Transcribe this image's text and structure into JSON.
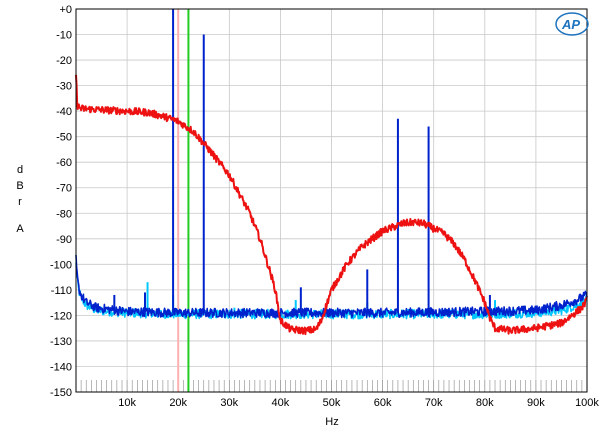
{
  "chart_data": {
    "type": "line",
    "title": "",
    "xlabel": "Hz",
    "ylabel": "dBr A",
    "ylabel_letters": [
      "d",
      "B",
      "r",
      "",
      "A"
    ],
    "xlim": [
      0,
      100000
    ],
    "ylim": [
      -150,
      0
    ],
    "x_ticks": [
      10000,
      20000,
      30000,
      40000,
      50000,
      60000,
      70000,
      80000,
      90000,
      100000
    ],
    "x_tick_labels": [
      "10k",
      "20k",
      "30k",
      "40k",
      "50k",
      "60k",
      "70k",
      "80k",
      "90k",
      "100k"
    ],
    "y_ticks": [
      0,
      -10,
      -20,
      -30,
      -40,
      -50,
      -60,
      -70,
      -80,
      -90,
      -100,
      -110,
      -120,
      -130,
      -140,
      -150
    ],
    "y_tick_labels": [
      "+0",
      "-10",
      "-20",
      "-30",
      "-40",
      "-50",
      "-60",
      "-70",
      "-80",
      "-90",
      "-100",
      "-110",
      "-120",
      "-130",
      "-140",
      "-150"
    ],
    "grid": true,
    "logo": "AP",
    "series": [
      {
        "color": "#00c8ff",
        "kind": "noise-floor",
        "x": [
          0,
          200,
          500,
          1000,
          2000,
          4000,
          10000,
          20000,
          40000,
          60000,
          80000,
          90000,
          95000,
          98000,
          100000
        ],
        "y": [
          -100,
          -105,
          -110,
          -113,
          -116,
          -118,
          -119,
          -119.5,
          -119.5,
          -119.5,
          -119.5,
          -119,
          -118,
          -116,
          -114
        ],
        "spikes": [
          {
            "x": 14000,
            "y": -107
          },
          {
            "x": 19000,
            "y": -112
          },
          {
            "x": 31000,
            "y": -117
          },
          {
            "x": 43000,
            "y": -114
          },
          {
            "x": 57000,
            "y": -115
          },
          {
            "x": 82000,
            "y": -114
          }
        ]
      },
      {
        "color": "#0022cc",
        "kind": "noise-floor",
        "x": [
          0,
          200,
          500,
          1000,
          2000,
          4000,
          10000,
          20000,
          40000,
          60000,
          80000,
          90000,
          95000,
          98000,
          100000
        ],
        "y": [
          -98,
          -104,
          -109,
          -112,
          -115,
          -117,
          -118.5,
          -119,
          -119,
          -119,
          -118.5,
          -118,
          -116,
          -114,
          -112
        ],
        "spikes": [
          {
            "x": 7500,
            "y": -112
          },
          {
            "x": 13500,
            "y": -111
          },
          {
            "x": 19000,
            "y": 0
          },
          {
            "x": 25000,
            "y": -10
          },
          {
            "x": 44000,
            "y": -109
          },
          {
            "x": 57000,
            "y": -102
          },
          {
            "x": 63000,
            "y": -43
          },
          {
            "x": 69000,
            "y": -46
          },
          {
            "x": 81000,
            "y": -112
          }
        ]
      },
      {
        "color": "#ee1111",
        "kind": "filter-response",
        "x": [
          0,
          300,
          1000,
          5000,
          10000,
          14000,
          17000,
          20000,
          23000,
          26000,
          30000,
          34000,
          36000,
          38000,
          39000,
          40000,
          42000,
          45000,
          47000,
          48000,
          50000,
          53000,
          56000,
          60000,
          64000,
          66000,
          68000,
          72000,
          74000,
          76000,
          78000,
          80000,
          81000,
          82000,
          85000,
          90000,
          95000,
          97000,
          99000,
          100000
        ],
        "y": [
          -27,
          -38,
          -39,
          -39.5,
          -40,
          -40.5,
          -42,
          -44,
          -48,
          -55,
          -65,
          -80,
          -90,
          -103,
          -110,
          -122,
          -125.5,
          -126,
          -125.5,
          -122,
          -110,
          -100,
          -93,
          -87,
          -84,
          -83.5,
          -84,
          -88,
          -92,
          -98,
          -106,
          -115,
          -121,
          -125,
          -126,
          -125,
          -123,
          -120,
          -117,
          -114
        ]
      }
    ],
    "markers": [
      {
        "x": 20000,
        "color": "#ffb0b0"
      },
      {
        "x": 22000,
        "color": "#22cc22"
      }
    ]
  }
}
